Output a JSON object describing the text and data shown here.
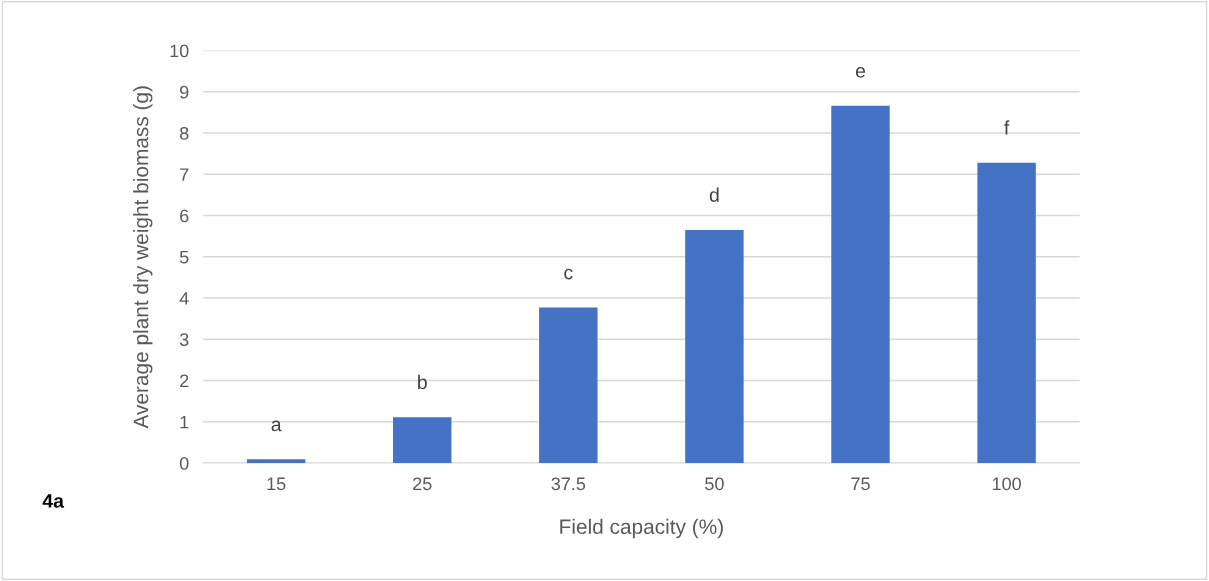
{
  "chart_data": {
    "type": "bar",
    "xlabel": "Field capacity (%)",
    "ylabel": "Average plant dry weight biomass (g)",
    "categories": [
      "15",
      "25",
      "37.5",
      "50",
      "75",
      "100"
    ],
    "values": [
      0.09,
      1.11,
      3.77,
      5.65,
      8.66,
      7.28
    ],
    "color": "#4472c4",
    "ylim": [
      0,
      10
    ],
    "yticks": [
      0,
      1,
      2,
      3,
      4,
      5,
      6,
      7,
      8,
      9,
      10
    ],
    "grid": "y",
    "annotations": [
      {
        "text": "a",
        "x": "15",
        "y": 0.09
      },
      {
        "text": "b",
        "x": "25",
        "y": 1.11
      },
      {
        "text": "c",
        "x": "37.5",
        "y": 3.77
      },
      {
        "text": "d",
        "x": "50",
        "y": 5.65
      },
      {
        "text": "e",
        "x": "75",
        "y": 8.66
      },
      {
        "text": "f",
        "x": "100",
        "y": 7.28
      },
      "4a"
    ]
  }
}
